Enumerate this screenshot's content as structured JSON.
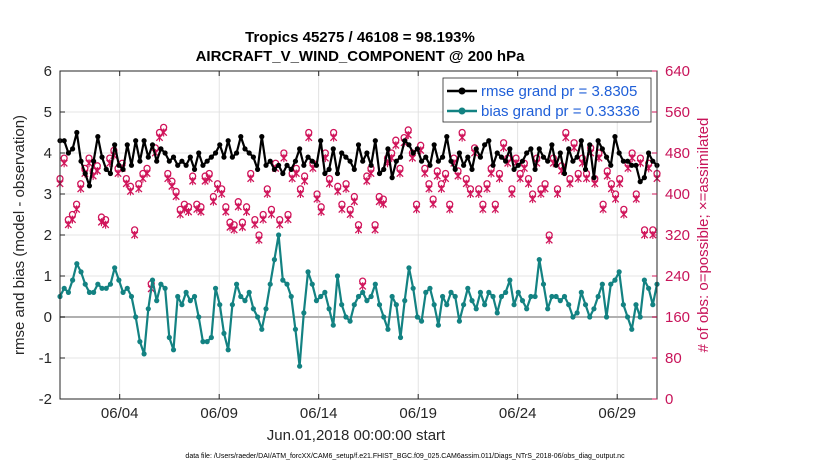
{
  "chart_data": {
    "type": "line",
    "title_line1": "Tropics 45275 / 46108 = 98.193%",
    "title_line2": "AIRCRAFT_V_WIND_COMPONENT @ 200 hPa",
    "xlabel": "Jun.01,2018 00:00:00 start",
    "ylabel_left": "rmse and bias (model - observation)",
    "ylabel_right": "# of obs: o=possible; ×=assimilated",
    "footnote": "data file: /Users/raeder/DAI/ATM_forcXX/CAM6_setup/f.e21.FHIST_BGC.f09_025.CAM6assim.011/Diags_NTrS_2018-06/obs_diag_output.nc",
    "x_range_days": [
      1.0,
      31.0
    ],
    "ylim_left": [
      -2,
      6
    ],
    "ylim_right": [
      0,
      640
    ],
    "x_ticks": [
      {
        "day": 4,
        "label": "06/04"
      },
      {
        "day": 9,
        "label": "06/09"
      },
      {
        "day": 14,
        "label": "06/14"
      },
      {
        "day": 19,
        "label": "06/19"
      },
      {
        "day": 24,
        "label": "06/24"
      },
      {
        "day": 29,
        "label": "06/29"
      }
    ],
    "y_ticks_left": [
      {
        "value": -2,
        "label": "-2"
      },
      {
        "value": -1,
        "label": "-1"
      },
      {
        "value": 0,
        "label": "0"
      },
      {
        "value": 1,
        "label": "1"
      },
      {
        "value": 2,
        "label": "2"
      },
      {
        "value": 3,
        "label": "3"
      },
      {
        "value": 4,
        "label": "4"
      },
      {
        "value": 5,
        "label": "5"
      },
      {
        "value": 6,
        "label": "6"
      }
    ],
    "y_ticks_right": [
      {
        "value": 0,
        "label": "0"
      },
      {
        "value": 80,
        "label": "80"
      },
      {
        "value": 160,
        "label": "160"
      },
      {
        "value": 240,
        "label": "240"
      },
      {
        "value": 320,
        "label": "320"
      },
      {
        "value": 400,
        "label": "400"
      },
      {
        "value": 480,
        "label": "480"
      },
      {
        "value": 560,
        "label": "560"
      },
      {
        "value": 640,
        "label": "640"
      }
    ],
    "zero_line_value": 0,
    "colors": {
      "rmse": "#000000",
      "bias": "#138282",
      "obs": "#d0145a",
      "legend_text": "#1f5fd8",
      "grid": "#dcdcdc",
      "zero_line": "#b0b0b0"
    },
    "series": [
      {
        "name": "rmse grand pr = 3.8305",
        "axis": "left",
        "values": [
          4.3,
          4.3,
          4.0,
          4.1,
          4.5,
          3.8,
          3.5,
          3.2,
          3.8,
          4.4,
          3.9,
          3.6,
          3.5,
          4.2,
          3.7,
          3.6,
          4.2,
          3.7,
          4.3,
          3.8,
          4.3,
          3.9,
          4.2,
          3.8,
          4.1,
          4.0,
          3.8,
          3.9,
          3.7,
          3.8,
          3.7,
          3.9,
          3.6,
          4.0,
          3.7,
          3.8,
          3.9,
          4.0,
          4.2,
          3.9,
          4.3,
          3.9,
          4.0,
          4.4,
          4.1,
          4.0,
          3.9,
          3.6,
          4.4,
          3.7,
          3.8,
          3.6,
          3.7,
          3.5,
          3.7,
          3.6,
          3.8,
          4.1,
          3.7,
          3.9,
          3.8,
          3.7,
          4.3,
          3.5,
          3.6,
          4.1,
          3.5,
          4.0,
          3.9,
          3.8,
          3.6,
          4.2,
          3.8,
          4.0,
          3.7,
          4.3,
          3.5,
          3.6,
          4.1,
          3.4,
          3.8,
          3.9,
          4.3,
          4.2,
          4.0,
          4.1,
          3.8,
          3.9,
          3.7,
          4.2,
          3.8,
          3.9,
          4.4,
          3.8,
          3.6,
          4.0,
          3.7,
          3.9,
          3.6,
          4.1,
          3.9,
          4.2,
          4.3,
          3.7,
          4.0,
          3.9,
          3.8,
          4.1,
          3.6,
          3.7,
          3.8,
          4.0,
          4.1,
          3.6,
          4.1,
          3.9,
          3.8,
          4.2,
          3.7,
          4.0,
          3.5,
          4.1,
          3.8,
          3.9,
          4.3,
          3.6,
          4.2,
          3.4,
          4.3,
          4.1,
          3.9,
          3.7,
          4.4,
          4.0,
          3.8,
          3.8,
          3.7,
          3.7,
          3.3,
          3.4,
          4.0,
          3.8,
          3.7
        ]
      },
      {
        "name": "bias grand pr = 0.33336",
        "axis": "left",
        "values": [
          0.5,
          0.7,
          0.6,
          0.9,
          1.3,
          1.1,
          0.8,
          0.6,
          0.6,
          0.8,
          0.7,
          0.7,
          0.8,
          1.2,
          0.9,
          0.6,
          0.7,
          0.5,
          0.0,
          -0.6,
          -0.9,
          0.2,
          0.9,
          0.4,
          0.8,
          0.7,
          -0.5,
          -0.8,
          0.5,
          0.3,
          0.6,
          0.4,
          0.5,
          0.0,
          -0.6,
          -0.6,
          -0.5,
          0.7,
          0.3,
          -0.4,
          -0.8,
          0.3,
          0.8,
          0.5,
          0.4,
          0.6,
          0.2,
          0.0,
          -0.3,
          0.2,
          0.8,
          1.4,
          2.0,
          0.9,
          0.8,
          0.5,
          -0.3,
          -1.2,
          0.1,
          1.1,
          0.8,
          0.4,
          0.5,
          0.6,
          0.2,
          -0.2,
          1.0,
          0.3,
          0.0,
          -0.1,
          0.3,
          0.5,
          0.6,
          0.4,
          0.5,
          0.8,
          0.3,
          0.0,
          -0.3,
          0.5,
          0.3,
          -0.5,
          0.4,
          1.2,
          0.7,
          0.0,
          -0.1,
          0.6,
          0.7,
          0.3,
          -0.2,
          0.5,
          0.3,
          0.6,
          0.5,
          -0.1,
          0.3,
          0.7,
          0.4,
          0.2,
          0.6,
          0.3,
          0.6,
          0.5,
          0.1,
          0.5,
          0.6,
          0.9,
          0.3,
          0.6,
          0.4,
          0.2,
          0.5,
          0.5,
          1.4,
          0.8,
          0.2,
          0.5,
          0.5,
          0.4,
          0.5,
          0.3,
          0.0,
          0.1,
          0.6,
          0.3,
          0.0,
          0.2,
          0.5,
          0.8,
          0.0,
          0.8,
          0.9,
          1.1,
          0.3,
          0.0,
          -0.3,
          0.3,
          0.0,
          0.9,
          0.7,
          0.3,
          0.8
        ]
      },
      {
        "name": "obs possible (o)",
        "axis": "right",
        "values": [
          430,
          470,
          350,
          360,
          380,
          420,
          450,
          470,
          445,
          455,
          355,
          350,
          470,
          485,
          450,
          460,
          430,
          415,
          330,
          420,
          440,
          450,
          225,
          490,
          520,
          530,
          440,
          425,
          405,
          370,
          380,
          375,
          435,
          380,
          375,
          435,
          440,
          395,
          420,
          410,
          375,
          345,
          340,
          385,
          345,
          375,
          440,
          350,
          320,
          360,
          410,
          370,
          460,
          350,
          480,
          360,
          440,
          450,
          410,
          435,
          520,
          460,
          400,
          375,
          480,
          430,
          520,
          415,
          380,
          420,
          370,
          395,
          340,
          230,
          435,
          450,
          340,
          395,
          390,
          470,
          480,
          505,
          450,
          510,
          525,
          480,
          380,
          495,
          450,
          420,
          390,
          445,
          420,
          440,
          380,
          470,
          445,
          520,
          430,
          410,
          490,
          410,
          380,
          420,
          450,
          380,
          440,
          500,
          470,
          410,
          470,
          440,
          460,
          430,
          400,
          470,
          410,
          420,
          320,
          470,
          410,
          455,
          520,
          430,
          500,
          440,
          470,
          440,
          490,
          430,
          480,
          380,
          445,
          420,
          400,
          430,
          370,
          460,
          480,
          400,
          470,
          330,
          460,
          330,
          440
        ]
      },
      {
        "name": "obs assimilated (×)",
        "axis": "right",
        "values": [
          420,
          460,
          340,
          350,
          370,
          410,
          440,
          460,
          435,
          445,
          345,
          340,
          460,
          475,
          440,
          450,
          420,
          405,
          320,
          410,
          430,
          440,
          215,
          480,
          510,
          520,
          430,
          415,
          395,
          360,
          370,
          365,
          425,
          370,
          365,
          425,
          430,
          385,
          410,
          400,
          365,
          335,
          330,
          375,
          335,
          365,
          430,
          340,
          310,
          350,
          400,
          360,
          450,
          340,
          470,
          350,
          430,
          440,
          400,
          425,
          510,
          450,
          390,
          365,
          470,
          420,
          510,
          405,
          370,
          410,
          360,
          385,
          330,
          220,
          425,
          440,
          330,
          385,
          380,
          460,
          470,
          495,
          440,
          500,
          515,
          470,
          370,
          485,
          440,
          410,
          380,
          435,
          410,
          430,
          370,
          460,
          435,
          510,
          420,
          400,
          480,
          400,
          370,
          410,
          440,
          370,
          430,
          490,
          460,
          400,
          460,
          430,
          450,
          420,
          390,
          460,
          400,
          410,
          310,
          460,
          400,
          445,
          510,
          420,
          490,
          430,
          460,
          430,
          480,
          420,
          470,
          370,
          435,
          410,
          390,
          420,
          360,
          450,
          470,
          390,
          460,
          320,
          450,
          320,
          430
        ]
      }
    ]
  }
}
